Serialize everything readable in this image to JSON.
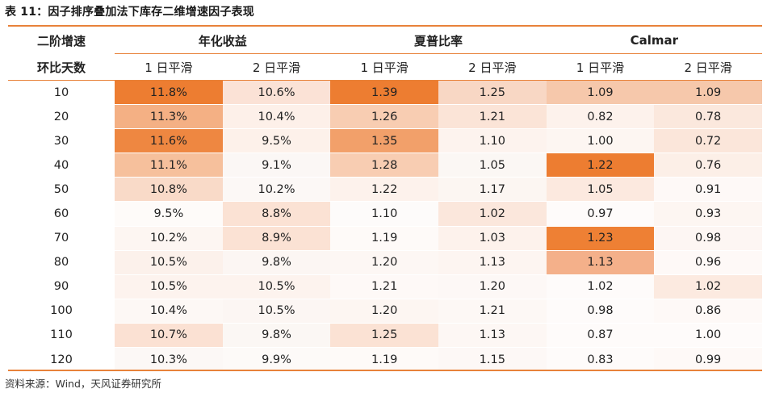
{
  "title": "表 11：因子排序叠加法下库存二维增速因子表现",
  "source": "资料来源：Wind，天风证券研究所",
  "header": {
    "row1_label": "二阶增速",
    "row2_label": "环比天数",
    "groups": [
      "年化收益",
      "夏普比率",
      "Calmar"
    ],
    "sub": [
      "1 日平滑",
      "2 日平滑",
      "1 日平滑",
      "2 日平滑",
      "1 日平滑",
      "2 日平滑"
    ]
  },
  "rows": [
    {
      "label": "10",
      "cells": [
        "11.8%",
        "10.6%",
        "1.39",
        "1.25",
        "1.09",
        "1.09"
      ]
    },
    {
      "label": "20",
      "cells": [
        "11.3%",
        "10.4%",
        "1.26",
        "1.21",
        "0.82",
        "0.78"
      ]
    },
    {
      "label": "30",
      "cells": [
        "11.6%",
        "9.5%",
        "1.35",
        "1.10",
        "1.00",
        "0.72"
      ]
    },
    {
      "label": "40",
      "cells": [
        "11.1%",
        "9.1%",
        "1.28",
        "1.05",
        "1.22",
        "0.76"
      ]
    },
    {
      "label": "50",
      "cells": [
        "10.8%",
        "10.2%",
        "1.22",
        "1.17",
        "1.05",
        "0.91"
      ]
    },
    {
      "label": "60",
      "cells": [
        "9.5%",
        "8.8%",
        "1.10",
        "1.02",
        "0.97",
        "0.93"
      ]
    },
    {
      "label": "70",
      "cells": [
        "10.2%",
        "8.9%",
        "1.19",
        "1.03",
        "1.23",
        "0.98"
      ]
    },
    {
      "label": "80",
      "cells": [
        "10.5%",
        "9.8%",
        "1.20",
        "1.13",
        "1.13",
        "0.96"
      ]
    },
    {
      "label": "90",
      "cells": [
        "10.5%",
        "10.5%",
        "1.21",
        "1.20",
        "1.02",
        "1.02"
      ]
    },
    {
      "label": "100",
      "cells": [
        "10.4%",
        "10.5%",
        "1.20",
        "1.21",
        "0.98",
        "0.86"
      ]
    },
    {
      "label": "110",
      "cells": [
        "10.7%",
        "9.8%",
        "1.25",
        "1.13",
        "0.87",
        "1.00"
      ]
    },
    {
      "label": "120",
      "cells": [
        "10.3%",
        "9.9%",
        "1.19",
        "1.15",
        "0.83",
        "0.99"
      ]
    }
  ],
  "heat_colors": [
    [
      "#ed7d31",
      "#fbe2d6",
      "#ed7d31",
      "#f8d7c4",
      "#f6c8ab",
      "#f6c8ab"
    ],
    [
      "#f4b084",
      "#fdf0e9",
      "#f8cdb2",
      "#fbe4d7",
      "#fdf2ec",
      "#fbe8dd"
    ],
    [
      "#ee8741",
      "#fdf1ea",
      "#f2a06a",
      "#fdf3ee",
      "#fdf6f2",
      "#fbe6da"
    ],
    [
      "#f6c09c",
      "#fbf7f5",
      "#f8cdb2",
      "#fbf7f4",
      "#ed7d31",
      "#fcefe7"
    ],
    [
      "#f9dac8",
      "#fcf8f6",
      "#fdf2ec",
      "#fcf6f2",
      "#fce9df",
      "#fef9f7"
    ],
    [
      "#fefbf9",
      "#fbe2d4",
      "#fdfbfa",
      "#fbe7dc",
      "#fefbfa",
      "#fdf6f2"
    ],
    [
      "#fdf6f2",
      "#fbe2d4",
      "#fefaf8",
      "#fdf2ec",
      "#ee8034",
      "#fdf6f3"
    ],
    [
      "#fcf1eb",
      "#fcf6f3",
      "#fdf7f4",
      "#fdf5f1",
      "#f4b08a",
      "#fef9f7"
    ],
    [
      "#fdf3ee",
      "#fdf3ee",
      "#fef9f7",
      "#fdf8f6",
      "#fefbfa",
      "#fceae0"
    ],
    [
      "#fdf8f5",
      "#fcf6f3",
      "#fdf6f2",
      "#fdf8f5",
      "#fefbfa",
      "#fef9f7"
    ],
    [
      "#fbe1d3",
      "#fbf7f4",
      "#fbe2d4",
      "#fdf7f4",
      "#fefbfa",
      "#fefbfa"
    ],
    [
      "#fcf8f6",
      "#fdfaf8",
      "#fefaf8",
      "#fdf8f6",
      "#fefbfa",
      "#fef9f7"
    ]
  ]
}
